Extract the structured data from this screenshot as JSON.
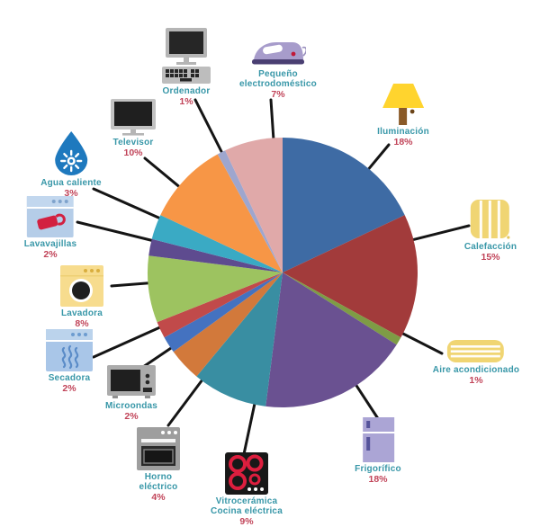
{
  "chart_data": {
    "type": "pie",
    "title": "",
    "unit": "%",
    "direction": "clockwise",
    "start_angle_deg": 0,
    "legend_position": "around",
    "slices": [
      {
        "id": "iluminacion",
        "label_lines": [
          "Iluminación"
        ],
        "pct": "18%",
        "value": 18,
        "color": "#3E6BA4",
        "icon": "lamp-icon"
      },
      {
        "id": "calefaccion",
        "label_lines": [
          "Calefacción"
        ],
        "pct": "15%",
        "value": 15,
        "color": "#A23B3B",
        "icon": "radiator-icon"
      },
      {
        "id": "aire-acondicionado",
        "label_lines": [
          "Aire acondicionado"
        ],
        "pct": "1%",
        "value": 1,
        "color": "#7E9C45",
        "icon": "air-conditioner-icon"
      },
      {
        "id": "frigorifico",
        "label_lines": [
          "Frigorífico"
        ],
        "pct": "18%",
        "value": 18,
        "color": "#6A5191",
        "icon": "fridge-icon"
      },
      {
        "id": "vitroceramica",
        "label_lines": [
          "Vitrocerámica",
          "Cocina eléctrica"
        ],
        "pct": "9%",
        "value": 9,
        "color": "#398EA2",
        "icon": "cooktop-icon"
      },
      {
        "id": "horno-electrico",
        "label_lines": [
          "Horno",
          "eléctrico"
        ],
        "pct": "4%",
        "value": 4,
        "color": "#D2793B",
        "icon": "oven-icon"
      },
      {
        "id": "microondas",
        "label_lines": [
          "Microondas"
        ],
        "pct": "2%",
        "value": 2,
        "color": "#4472C0",
        "icon": "microwave-icon"
      },
      {
        "id": "secadora",
        "label_lines": [
          "Secadora"
        ],
        "pct": "2%",
        "value": 2,
        "color": "#C14A4A",
        "icon": "dryer-icon"
      },
      {
        "id": "lavadora",
        "label_lines": [
          "Lavadora"
        ],
        "pct": "8%",
        "value": 8,
        "color": "#9DC360",
        "icon": "washer-icon"
      },
      {
        "id": "lavavajillas",
        "label_lines": [
          "Lavavajillas"
        ],
        "pct": "2%",
        "value": 2,
        "color": "#5E4B8F",
        "icon": "dishwasher-icon"
      },
      {
        "id": "agua-caliente",
        "label_lines": [
          "Agua caliente"
        ],
        "pct": "3%",
        "value": 3,
        "color": "#3AAAC4",
        "icon": "water-drop-icon"
      },
      {
        "id": "televisor",
        "label_lines": [
          "Televisor"
        ],
        "pct": "10%",
        "value": 10,
        "color": "#F79646",
        "icon": "tv-icon"
      },
      {
        "id": "ordenador",
        "label_lines": [
          "Ordenador"
        ],
        "pct": "1%",
        "value": 1,
        "color": "#9EA6CE",
        "icon": "computer-icon"
      },
      {
        "id": "pequeno-electrodomestico",
        "label_lines": [
          "Pequeño",
          "electrodoméstico"
        ],
        "pct": "7%",
        "value": 7,
        "color": "#E0A9A9",
        "icon": "iron-icon"
      }
    ]
  },
  "styles": {
    "label_color": "#3897A8",
    "pct_color": "#C14459",
    "line_color": "#151515",
    "background": "#FFFFFF"
  }
}
